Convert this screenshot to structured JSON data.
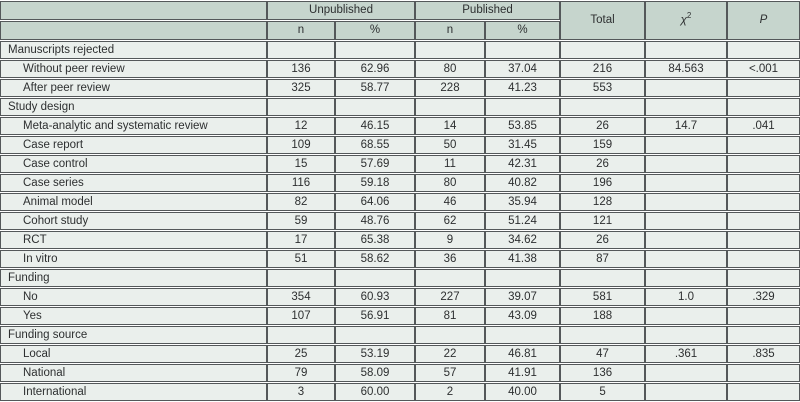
{
  "colors": {
    "header_bg": "#c6d5cd",
    "row_bg": "#eaefec",
    "border": "#54585a",
    "text": "#2d2f30",
    "gap": "#ffffff"
  },
  "header": {
    "unpublished": "Unpublished",
    "published": "Published",
    "n1": "n",
    "pct1": "%",
    "n2": "n",
    "pct2": "%",
    "total": "Total",
    "chi": "χ",
    "chi_sup": "2",
    "p": "P"
  },
  "rows": [
    {
      "type": "section",
      "label": "Manuscripts rejected"
    },
    {
      "type": "data",
      "label": "Without peer review",
      "unpub_n": "136",
      "unpub_pct": "62.96",
      "pub_n": "80",
      "pub_pct": "37.04",
      "total": "216",
      "chi": "84.563",
      "p": "<.001"
    },
    {
      "type": "data",
      "label": "After peer review",
      "unpub_n": "325",
      "unpub_pct": "58.77",
      "pub_n": "228",
      "pub_pct": "41.23",
      "total": "553",
      "chi": "",
      "p": ""
    },
    {
      "type": "section",
      "label": "Study design"
    },
    {
      "type": "data",
      "label": "Meta-analytic and systematic review",
      "unpub_n": "12",
      "unpub_pct": "46.15",
      "pub_n": "14",
      "pub_pct": "53.85",
      "total": "26",
      "chi": "14.7",
      "p": ".041"
    },
    {
      "type": "data",
      "label": "Case report",
      "unpub_n": "109",
      "unpub_pct": "68.55",
      "pub_n": "50",
      "pub_pct": "31.45",
      "total": "159",
      "chi": "",
      "p": ""
    },
    {
      "type": "data",
      "label": "Case control",
      "unpub_n": "15",
      "unpub_pct": "57.69",
      "pub_n": "11",
      "pub_pct": "42.31",
      "total": "26",
      "chi": "",
      "p": ""
    },
    {
      "type": "data",
      "label": "Case series",
      "unpub_n": "116",
      "unpub_pct": "59.18",
      "pub_n": "80",
      "pub_pct": "40.82",
      "total": "196",
      "chi": "",
      "p": ""
    },
    {
      "type": "data",
      "label": "Animal model",
      "unpub_n": "82",
      "unpub_pct": "64.06",
      "pub_n": "46",
      "pub_pct": "35.94",
      "total": "128",
      "chi": "",
      "p": ""
    },
    {
      "type": "data",
      "label": "Cohort study",
      "unpub_n": "59",
      "unpub_pct": "48.76",
      "pub_n": "62",
      "pub_pct": "51.24",
      "total": "121",
      "chi": "",
      "p": ""
    },
    {
      "type": "data",
      "label": "RCT",
      "unpub_n": "17",
      "unpub_pct": "65.38",
      "pub_n": "9",
      "pub_pct": "34.62",
      "total": "26",
      "chi": "",
      "p": ""
    },
    {
      "type": "data",
      "label": "In vitro",
      "unpub_n": "51",
      "unpub_pct": "58.62",
      "pub_n": "36",
      "pub_pct": "41.38",
      "total": "87",
      "chi": "",
      "p": ""
    },
    {
      "type": "section",
      "label": "Funding"
    },
    {
      "type": "data",
      "label": "No",
      "unpub_n": "354",
      "unpub_pct": "60.93",
      "pub_n": "227",
      "pub_pct": "39.07",
      "total": "581",
      "chi": "1.0",
      "p": ".329"
    },
    {
      "type": "data",
      "label": "Yes",
      "unpub_n": "107",
      "unpub_pct": "56.91",
      "pub_n": "81",
      "pub_pct": "43.09",
      "total": "188",
      "chi": "",
      "p": ""
    },
    {
      "type": "section",
      "label": "Funding source"
    },
    {
      "type": "data",
      "label": "Local",
      "unpub_n": "25",
      "unpub_pct": "53.19",
      "pub_n": "22",
      "pub_pct": "46.81",
      "total": "47",
      "chi": ".361",
      "p": ".835"
    },
    {
      "type": "data",
      "label": "National",
      "unpub_n": "79",
      "unpub_pct": "58.09",
      "pub_n": "57",
      "pub_pct": "41.91",
      "total": "136",
      "chi": "",
      "p": ""
    },
    {
      "type": "data",
      "label": "International",
      "unpub_n": "3",
      "unpub_pct": "60.00",
      "pub_n": "2",
      "pub_pct": "40.00",
      "total": "5",
      "chi": "",
      "p": ""
    }
  ]
}
